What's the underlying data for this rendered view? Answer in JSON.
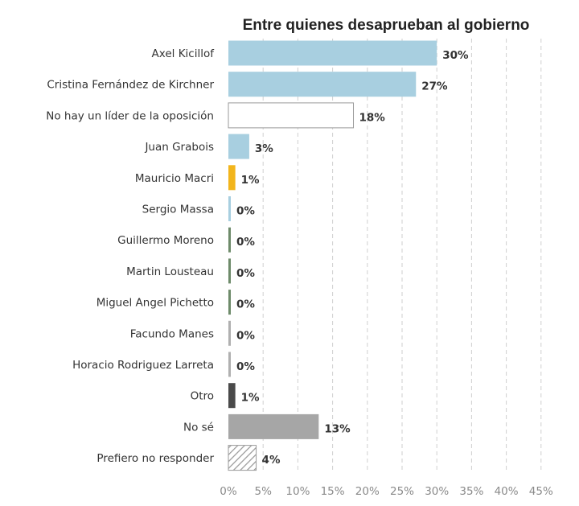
{
  "chart_data": {
    "type": "bar",
    "orientation": "horizontal",
    "title": "Entre quienes desaprueban al gobierno",
    "xlabel": "",
    "ylabel": "",
    "xlim": [
      0,
      45
    ],
    "grid": true,
    "categories": [
      "Axel Kicillof",
      "Cristina Fernández de Kirchner",
      "No hay un líder de la oposición",
      "Juan Grabois",
      "Mauricio Macri",
      "Sergio Massa",
      "Guillermo Moreno",
      "Martin Lousteau",
      "Miguel Angel Pichetto",
      "Facundo Manes",
      "Horacio Rodriguez Larreta",
      "Otro",
      "No sé",
      "Prefiero no responder"
    ],
    "values": [
      30,
      27,
      18,
      3,
      1,
      0,
      0,
      0,
      0,
      0,
      0,
      1,
      13,
      4
    ],
    "labels": [
      "30%",
      "27%",
      "18%",
      "3%",
      "1%",
      "0%",
      "0%",
      "0%",
      "0%",
      "0%",
      "0%",
      "1%",
      "13%",
      "4%"
    ],
    "colors": [
      "#a8cfe0",
      "#a8cfe0",
      "#ffffff",
      "#a8cfe0",
      "#f2b51c",
      "#a8cfe0",
      "#6e8b6a",
      "#6e8b6a",
      "#6e8b6a",
      "#b0b0b0",
      "#b0b0b0",
      "#4a4a4a",
      "#a6a6a6",
      "hatch"
    ],
    "x_ticks": [
      "0%",
      "5%",
      "10%",
      "15%",
      "20%",
      "25%",
      "30%",
      "35%",
      "40%",
      "45%"
    ]
  }
}
